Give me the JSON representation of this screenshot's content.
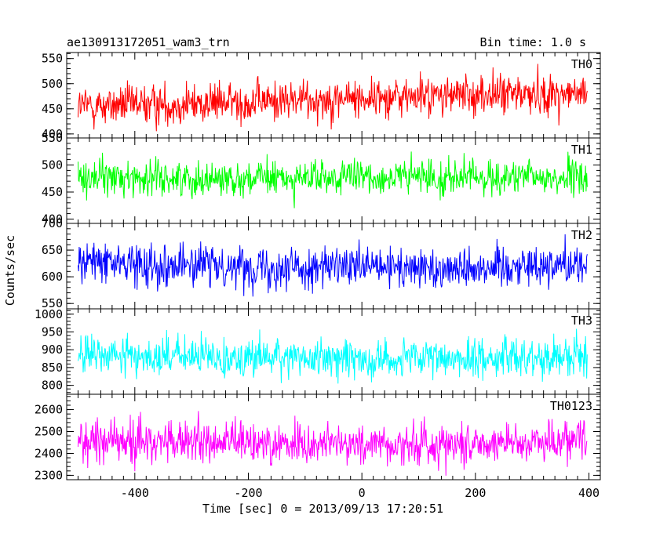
{
  "header": {
    "title": "ae130913172051_wam3_trn",
    "bin_time": "Bin time: 1.0 s"
  },
  "chart_data": {
    "type": "line",
    "title": "ae130913172051_wam3_trn",
    "xlabel": "Time [sec] 0 = 2013/09/13 17:20:51",
    "ylabel": "Counts/sec",
    "xlim": [
      -520,
      420
    ],
    "xticks": [
      -400,
      -200,
      0,
      200,
      400
    ],
    "x_range": [
      -500,
      397
    ],
    "bin_seconds": 1.0,
    "series": [
      {
        "name": "TH0",
        "color": "#ff0000",
        "ylim": [
          392,
          562
        ],
        "yticks": [
          400,
          450,
          500,
          550
        ],
        "anchors": [
          [
            -500,
            455
          ],
          [
            -300,
            460
          ],
          [
            -100,
            468
          ],
          [
            100,
            475
          ],
          [
            300,
            480
          ],
          [
            397,
            478
          ]
        ],
        "noise_sd": 25
      },
      {
        "name": "TH1",
        "color": "#00ff00",
        "ylim": [
          392,
          550
        ],
        "yticks": [
          400,
          450,
          500,
          550
        ],
        "anchors": [
          [
            -500,
            478
          ],
          [
            -300,
            475
          ],
          [
            -100,
            475
          ],
          [
            100,
            478
          ],
          [
            300,
            476
          ],
          [
            397,
            476
          ]
        ],
        "noise_sd": 20
      },
      {
        "name": "TH2",
        "color": "#0000ff",
        "ylim": [
          540,
          700
        ],
        "yticks": [
          550,
          600,
          650,
          700
        ],
        "anchors": [
          [
            -500,
            628
          ],
          [
            -300,
            622
          ],
          [
            -100,
            618
          ],
          [
            100,
            615
          ],
          [
            300,
            622
          ],
          [
            397,
            625
          ]
        ],
        "noise_sd": 24
      },
      {
        "name": "TH3",
        "color": "#00ffff",
        "ylim": [
          775,
          1015
        ],
        "yticks": [
          800,
          850,
          900,
          950,
          1000
        ],
        "anchors": [
          [
            -500,
            885
          ],
          [
            -300,
            880
          ],
          [
            -100,
            878
          ],
          [
            100,
            872
          ],
          [
            300,
            880
          ],
          [
            397,
            885
          ]
        ],
        "noise_sd": 34
      },
      {
        "name": "TH0123",
        "color": "#ff00ff",
        "ylim": [
          2280,
          2670
        ],
        "yticks": [
          2300,
          2400,
          2500,
          2600
        ],
        "anchors": [
          [
            -500,
            2460
          ],
          [
            -300,
            2450
          ],
          [
            -100,
            2445
          ],
          [
            100,
            2440
          ],
          [
            300,
            2455
          ],
          [
            397,
            2470
          ]
        ],
        "noise_sd": 60
      }
    ]
  }
}
